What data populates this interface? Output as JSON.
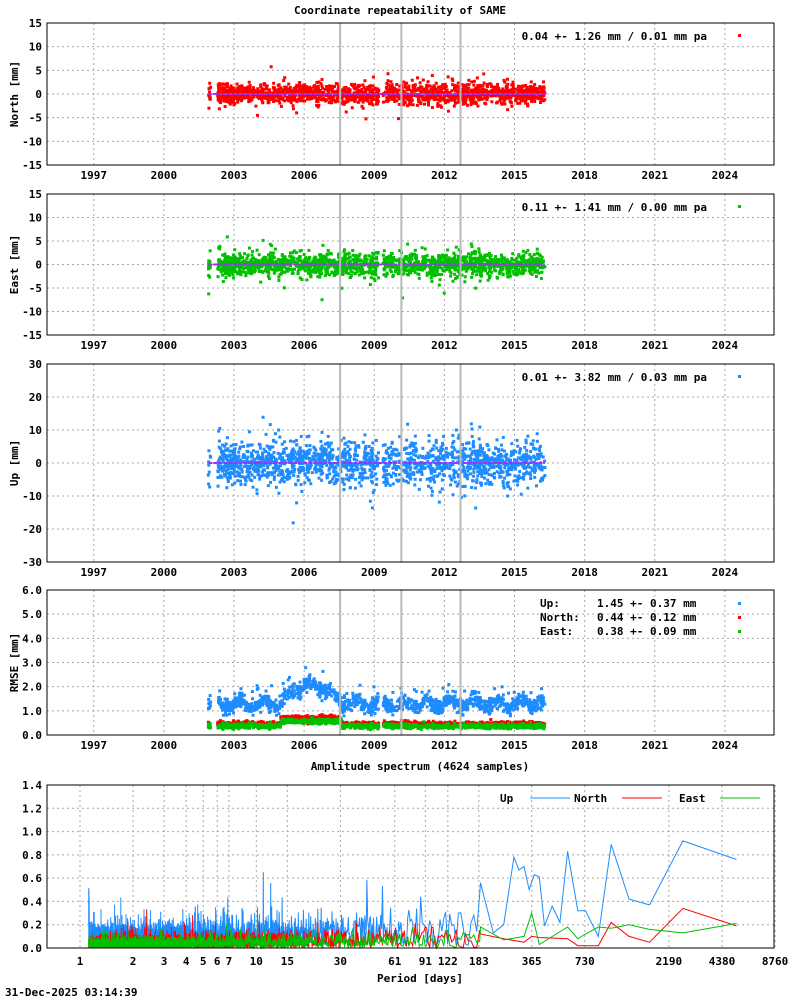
{
  "title": "Coordinate repeatability of SAME",
  "spectrum_title": "Amplitude spectrum (4624 samples)",
  "timestamp": "31-Dec-2025 03:14:39",
  "colors": {
    "north": "#ff0000",
    "east": "#00c000",
    "up": "#1e8cff",
    "mean_line": "#9b30ff",
    "event_line": "#b8b8b8"
  },
  "chart_data": [
    {
      "type": "scatter",
      "component": "North",
      "ylabel": "North [mm]",
      "ylim": [
        -15,
        15
      ],
      "yticks": [
        "15",
        "10",
        "5",
        "0",
        "-5",
        "-10",
        "-15"
      ],
      "ytick_values": [
        15,
        10,
        5,
        0,
        -5,
        -10,
        -15
      ],
      "xlim": [
        1995,
        2026.1
      ],
      "xticks": [
        "1997",
        "2000",
        "2003",
        "2006",
        "2009",
        "2012",
        "2015",
        "2018",
        "2021",
        "2024"
      ],
      "legend": "0.04 +- 1.26 mm /  0.01 mm pa",
      "legend_position": "top-right",
      "mean_mm": 0.04,
      "std_mm": 1.26,
      "trend_mm_pa": 0.01,
      "data_span": [
        2001.9,
        2016.3
      ],
      "gap": [
        2009.2,
        2009.38
      ],
      "event_lines": [
        2007.54,
        2010.16,
        2012.69
      ],
      "grid": true,
      "color": "#ff0000"
    },
    {
      "type": "scatter",
      "component": "East",
      "ylabel": "East [mm]",
      "ylim": [
        -15,
        15
      ],
      "yticks": [
        "15",
        "10",
        "5",
        "0",
        "-5",
        "-10",
        "-15"
      ],
      "ytick_values": [
        15,
        10,
        5,
        0,
        -5,
        -10,
        -15
      ],
      "xlim": [
        1995,
        2026.1
      ],
      "xticks": [
        "1997",
        "2000",
        "2003",
        "2006",
        "2009",
        "2012",
        "2015",
        "2018",
        "2021",
        "2024"
      ],
      "legend": "0.11 +- 1.41 mm /  0.00 mm pa",
      "legend_position": "top-right",
      "mean_mm": 0.11,
      "std_mm": 1.41,
      "trend_mm_pa": 0.0,
      "data_span": [
        2001.9,
        2016.3
      ],
      "gap": [
        2009.2,
        2009.38
      ],
      "event_lines": [
        2007.54,
        2010.16,
        2012.69
      ],
      "grid": true,
      "color": "#00c000"
    },
    {
      "type": "scatter",
      "component": "Up",
      "ylabel": "Up [mm]",
      "ylim": [
        -30,
        30
      ],
      "yticks": [
        "30",
        "20",
        "10",
        "0",
        "-10",
        "-20",
        "-30"
      ],
      "ytick_values": [
        30,
        20,
        10,
        0,
        -10,
        -20,
        -30
      ],
      "xlim": [
        1995,
        2026.1
      ],
      "xticks": [
        "1997",
        "2000",
        "2003",
        "2006",
        "2009",
        "2012",
        "2015",
        "2018",
        "2021",
        "2024"
      ],
      "legend": "0.01 +- 3.82 mm /  0.03 mm pa",
      "legend_position": "top-right",
      "mean_mm": 0.01,
      "std_mm": 3.82,
      "trend_mm_pa": 0.03,
      "data_span": [
        2001.9,
        2016.3
      ],
      "gap": [
        2009.2,
        2009.38
      ],
      "event_lines": [
        2007.54,
        2010.16,
        2012.69
      ],
      "grid": true,
      "color": "#1e8cff"
    },
    {
      "type": "scatter",
      "component": "RMSE",
      "ylabel": "RMSE [mm]",
      "ylim": [
        0,
        6
      ],
      "yticks": [
        "6.0",
        "5.0",
        "4.0",
        "3.0",
        "2.0",
        "1.0",
        "0.0"
      ],
      "ytick_values": [
        6,
        5,
        4,
        3,
        2,
        1,
        0
      ],
      "xlim": [
        1995,
        2026.1
      ],
      "xticks": [
        "1997",
        "2000",
        "2003",
        "2006",
        "2009",
        "2012",
        "2015",
        "2018",
        "2021",
        "2024"
      ],
      "legend_position": "top-right",
      "series": [
        {
          "name": "Up:",
          "value": "1.45 +- 0.37 mm",
          "mean": 1.45,
          "std": 0.37,
          "color": "#1e8cff"
        },
        {
          "name": "North:",
          "value": "0.44 +- 0.12 mm",
          "mean": 0.44,
          "std": 0.12,
          "color": "#ff0000"
        },
        {
          "name": "East:",
          "value": "0.38 +- 0.09 mm",
          "mean": 0.38,
          "std": 0.09,
          "color": "#00c000"
        }
      ],
      "data_span": [
        2001.9,
        2016.3
      ],
      "event_lines": [
        2007.54,
        2010.16,
        2012.69
      ],
      "grid": true
    },
    {
      "type": "line",
      "xlabel": "Period [days]",
      "xscale": "log",
      "ylim": [
        0,
        1.4
      ],
      "yticks": [
        "1.4",
        "1.2",
        "1.0",
        "0.8",
        "0.6",
        "0.4",
        "0.2",
        "0.0"
      ],
      "ytick_values": [
        1.4,
        1.2,
        1.0,
        0.8,
        0.6,
        0.4,
        0.2,
        0.0
      ],
      "xticks": [
        "1",
        "2",
        "3",
        "4",
        "5",
        "6",
        "7",
        "10",
        "15",
        "30",
        "61",
        "91",
        "122",
        "183",
        "365",
        "730",
        "2190",
        "4380",
        "8760"
      ],
      "xtick_values": [
        1,
        2,
        3,
        4,
        5,
        6,
        7,
        10,
        15,
        30,
        61,
        91,
        122,
        183,
        365,
        730,
        2190,
        4380,
        8760
      ],
      "legend_position": "top-right",
      "grid": true,
      "series": [
        {
          "name": "Up",
          "color": "#1e8cff",
          "short_period_level": 0.12,
          "x": [
            187,
            221,
            253,
            289,
            309,
            330,
            353,
            377,
            403,
            431,
            477,
            527,
            583,
            666,
            737,
            871,
            1030,
            1301,
            1700,
            2627,
            5297
          ],
          "y": [
            0.56,
            0.13,
            0.2,
            0.78,
            0.67,
            0.7,
            0.5,
            0.63,
            0.61,
            0.19,
            0.36,
            0.22,
            0.83,
            0.32,
            0.32,
            0.1,
            0.89,
            0.42,
            0.37,
            0.92,
            0.76
          ]
        },
        {
          "name": "North",
          "color": "#ff0000",
          "short_period_level": 0.06,
          "x": [
            187,
            253,
            330,
            365,
            403,
            583,
            666,
            871,
            1030,
            1301,
            1700,
            2627,
            5297
          ],
          "y": [
            0.12,
            0.08,
            0.05,
            0.1,
            0.09,
            0.08,
            0.02,
            0.02,
            0.22,
            0.1,
            0.05,
            0.34,
            0.19
          ]
        },
        {
          "name": "East",
          "color": "#00c000",
          "short_period_level": 0.05,
          "x": [
            187,
            253,
            330,
            365,
            403,
            583,
            666,
            737,
            871,
            1030,
            1301,
            1700,
            2627,
            5297
          ],
          "y": [
            0.18,
            0.07,
            0.1,
            0.3,
            0.03,
            0.18,
            0.08,
            0.12,
            0.18,
            0.17,
            0.2,
            0.16,
            0.13,
            0.21
          ]
        }
      ]
    }
  ]
}
